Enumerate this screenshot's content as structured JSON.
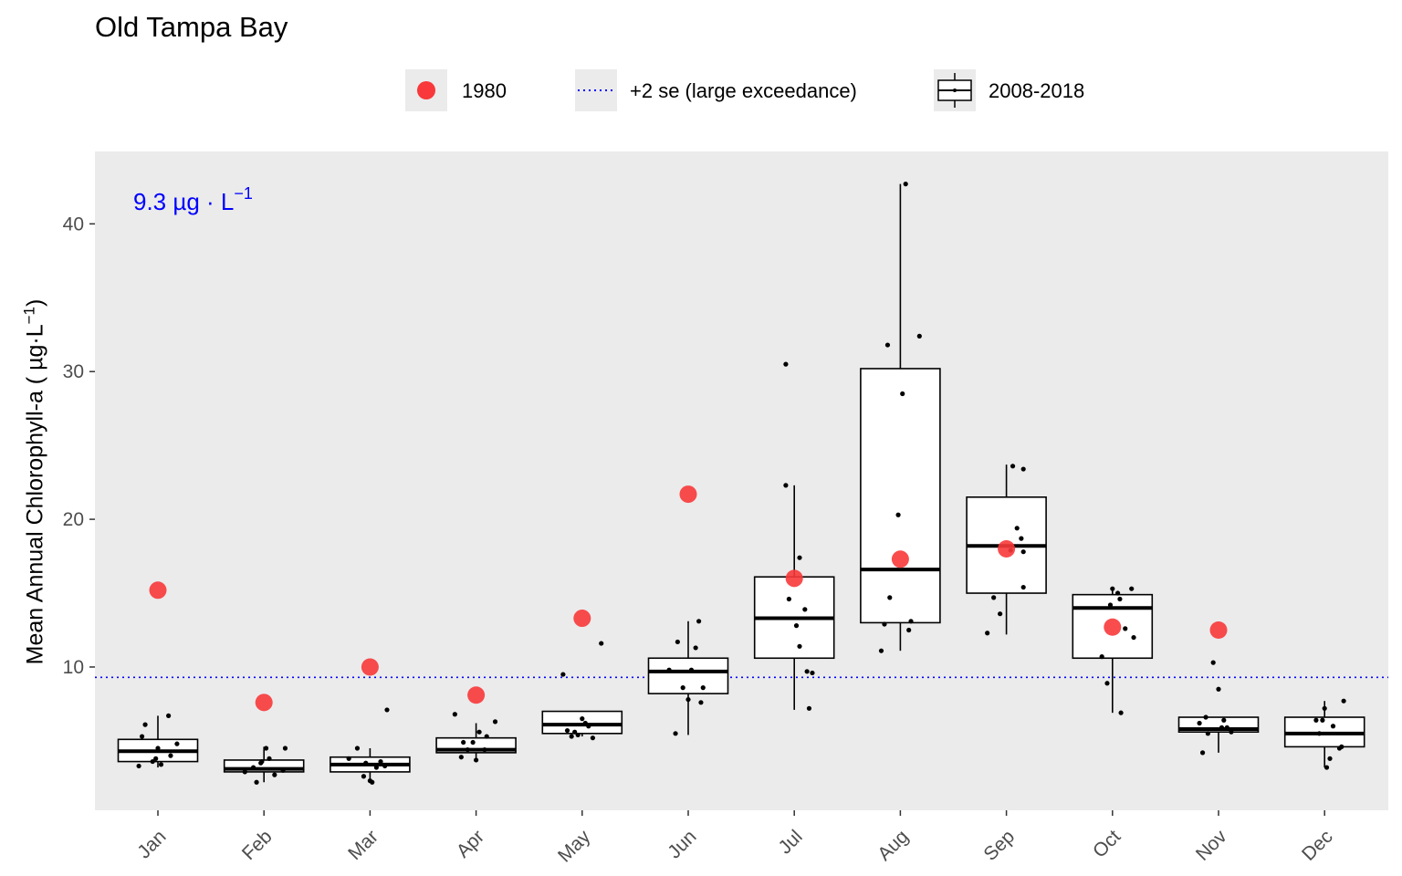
{
  "chart_data": {
    "type": "box",
    "title": "Old Tampa Bay",
    "ylabel": "Mean Annual Chlorophyll-a ( µg·L",
    "ylabel_sup": "−1",
    "ylabel_close": ")",
    "ylim": [
      0.3,
      44.9
    ],
    "yticks": [
      10,
      20,
      30,
      40
    ],
    "grid": false,
    "legend_position": "top",
    "legend": {
      "point_label": "1980",
      "line_label": "+2 se (large exceedance)",
      "box_label": "2008-2018"
    },
    "colors": {
      "point": "#f8383a",
      "threshold": "#0000ff",
      "panel": "#ebebeb"
    },
    "threshold": {
      "value": 9.3,
      "label": "9.3 µg · L",
      "label_sup": "−1"
    },
    "categories": [
      "Jan",
      "Feb",
      "Mar",
      "Apr",
      "May",
      "Jun",
      "Jul",
      "Aug",
      "Sep",
      "Oct",
      "Nov",
      "Dec"
    ],
    "boxes": [
      {
        "q1": 3.6,
        "median": 4.3,
        "q3": 5.1,
        "lower": 3.2,
        "upper": 6.7
      },
      {
        "q1": 2.9,
        "median": 3.1,
        "q3": 3.7,
        "lower": 2.2,
        "upper": 4.6
      },
      {
        "q1": 2.9,
        "median": 3.4,
        "q3": 3.9,
        "lower": 2.3,
        "upper": 4.5
      },
      {
        "q1": 4.2,
        "median": 4.4,
        "q3": 5.2,
        "lower": 3.7,
        "upper": 6.2
      },
      {
        "q1": 5.5,
        "median": 6.1,
        "q3": 7.0,
        "lower": 5.3,
        "upper": 7.0
      },
      {
        "q1": 8.2,
        "median": 9.7,
        "q3": 10.6,
        "lower": 5.4,
        "upper": 13.1
      },
      {
        "q1": 10.6,
        "median": 13.3,
        "q3": 16.1,
        "lower": 7.1,
        "upper": 22.3
      },
      {
        "q1": 13.0,
        "median": 16.6,
        "q3": 30.2,
        "lower": 11.1,
        "upper": 42.7
      },
      {
        "q1": 15.0,
        "median": 18.2,
        "q3": 21.5,
        "lower": 12.2,
        "upper": 23.7
      },
      {
        "q1": 10.6,
        "median": 14.0,
        "q3": 14.9,
        "lower": 6.9,
        "upper": 15.3
      },
      {
        "q1": 5.6,
        "median": 5.8,
        "q3": 6.6,
        "lower": 4.2,
        "upper": 6.6
      },
      {
        "q1": 4.6,
        "median": 5.5,
        "q3": 6.6,
        "lower": 3.2,
        "upper": 7.7
      }
    ],
    "jitter_points": [
      [
        [
          -0.18,
          3.3
        ],
        [
          -0.12,
          6.1
        ],
        [
          -0.15,
          5.3
        ],
        [
          0.0,
          4.5
        ],
        [
          0.1,
          6.7
        ],
        [
          0.18,
          4.8
        ],
        [
          -0.05,
          3.6
        ],
        [
          0.03,
          3.4
        ],
        [
          0.12,
          4.0
        ],
        [
          -0.02,
          3.8
        ]
      ],
      [
        [
          -0.18,
          2.9
        ],
        [
          -0.07,
          2.2
        ],
        [
          -0.03,
          3.5
        ],
        [
          0.02,
          4.5
        ],
        [
          0.1,
          2.7
        ],
        [
          0.2,
          4.5
        ],
        [
          0.18,
          3.0
        ],
        [
          -0.1,
          3.2
        ],
        [
          0.05,
          3.8
        ],
        [
          -0.02,
          3.6
        ]
      ],
      [
        [
          -0.2,
          3.8
        ],
        [
          -0.12,
          4.5
        ],
        [
          -0.06,
          2.6
        ],
        [
          0.0,
          2.3
        ],
        [
          0.02,
          2.2
        ],
        [
          0.1,
          3.6
        ],
        [
          0.14,
          3.3
        ],
        [
          0.16,
          7.1
        ],
        [
          -0.04,
          3.5
        ],
        [
          0.06,
          3.2
        ]
      ],
      [
        [
          -0.2,
          6.8
        ],
        [
          -0.14,
          3.9
        ],
        [
          -0.08,
          4.4
        ],
        [
          -0.03,
          4.9
        ],
        [
          0.0,
          3.7
        ],
        [
          0.03,
          5.6
        ],
        [
          0.08,
          4.4
        ],
        [
          0.18,
          6.3
        ],
        [
          -0.12,
          4.9
        ],
        [
          0.1,
          5.3
        ]
      ],
      [
        [
          -0.18,
          9.5
        ],
        [
          -0.1,
          5.3
        ],
        [
          -0.07,
          5.6
        ],
        [
          -0.04,
          5.4
        ],
        [
          0.0,
          6.5
        ],
        [
          0.03,
          6.2
        ],
        [
          0.1,
          5.2
        ],
        [
          0.18,
          11.6
        ],
        [
          -0.14,
          5.7
        ],
        [
          0.06,
          6.0
        ]
      ],
      [
        [
          -0.12,
          5.5
        ],
        [
          -0.1,
          11.7
        ],
        [
          -0.05,
          8.6
        ],
        [
          0.0,
          7.8
        ],
        [
          0.03,
          9.8
        ],
        [
          0.07,
          11.3
        ],
        [
          0.12,
          7.6
        ],
        [
          0.14,
          8.6
        ],
        [
          0.1,
          13.1
        ],
        [
          -0.18,
          9.8
        ]
      ],
      [
        [
          -0.08,
          30.5
        ],
        [
          -0.08,
          22.3
        ],
        [
          -0.05,
          14.6
        ],
        [
          0.02,
          12.8
        ],
        [
          0.05,
          17.4
        ],
        [
          0.05,
          11.4
        ],
        [
          0.1,
          13.9
        ],
        [
          0.12,
          9.7
        ],
        [
          0.14,
          7.2
        ],
        [
          0.17,
          9.6
        ]
      ],
      [
        [
          -0.18,
          11.1
        ],
        [
          -0.12,
          31.8
        ],
        [
          -0.1,
          14.7
        ],
        [
          -0.02,
          20.3
        ],
        [
          0.02,
          28.5
        ],
        [
          0.05,
          42.7
        ],
        [
          0.1,
          13.1
        ],
        [
          0.08,
          12.5
        ],
        [
          0.18,
          32.4
        ],
        [
          -0.15,
          12.9
        ]
      ],
      [
        [
          -0.18,
          12.3
        ],
        [
          -0.12,
          14.7
        ],
        [
          -0.06,
          13.6
        ],
        [
          0.06,
          23.6
        ],
        [
          0.1,
          19.4
        ],
        [
          0.16,
          23.4
        ],
        [
          0.14,
          18.7
        ],
        [
          0.16,
          15.4
        ],
        [
          0.16,
          17.8
        ],
        [
          0.04,
          17.9
        ]
      ],
      [
        [
          -0.1,
          10.7
        ],
        [
          -0.05,
          8.9
        ],
        [
          -0.02,
          14.2
        ],
        [
          0.0,
          15.3
        ],
        [
          0.05,
          15.0
        ],
        [
          0.07,
          14.6
        ],
        [
          0.12,
          12.6
        ],
        [
          0.18,
          15.3
        ],
        [
          0.2,
          12.0
        ],
        [
          0.08,
          6.9
        ]
      ],
      [
        [
          -0.18,
          6.2
        ],
        [
          -0.15,
          4.2
        ],
        [
          -0.1,
          5.5
        ],
        [
          -0.05,
          10.3
        ],
        [
          0.0,
          8.5
        ],
        [
          0.03,
          5.9
        ],
        [
          0.08,
          5.9
        ],
        [
          0.12,
          5.6
        ],
        [
          -0.12,
          6.6
        ],
        [
          0.05,
          6.4
        ]
      ],
      [
        [
          -0.08,
          6.4
        ],
        [
          -0.05,
          5.5
        ],
        [
          -0.02,
          6.4
        ],
        [
          0.0,
          7.2
        ],
        [
          0.02,
          3.2
        ],
        [
          0.05,
          3.8
        ],
        [
          0.08,
          6.0
        ],
        [
          0.14,
          4.5
        ],
        [
          0.18,
          7.7
        ],
        [
          0.16,
          4.6
        ]
      ]
    ],
    "points_1980": [
      15.2,
      7.6,
      10.0,
      8.1,
      13.3,
      21.7,
      16.0,
      17.3,
      18.0,
      12.7,
      12.5,
      null
    ]
  }
}
